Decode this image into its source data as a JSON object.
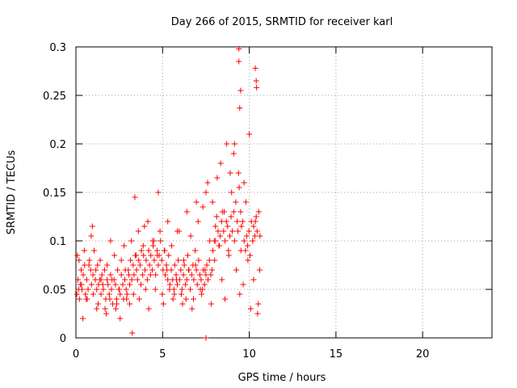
{
  "chart_data": {
    "type": "scatter",
    "title": "Day 266 of 2015, SRMTID for receiver karl",
    "xlabel": "GPS time / hours",
    "ylabel": "SRMTID / TECUs",
    "xlim": [
      0,
      24
    ],
    "ylim": [
      0,
      0.3
    ],
    "xticks": [
      0,
      5,
      10,
      15,
      20
    ],
    "xtick_labels": [
      "0",
      "5",
      "10",
      "15",
      "20"
    ],
    "yticks": [
      0,
      0.05,
      0.1,
      0.15,
      0.2,
      0.25,
      0.3
    ],
    "ytick_labels": [
      "0",
      "0.05",
      "0.1",
      "0.15",
      "0.2",
      "0.25",
      "0.3"
    ],
    "grid": true,
    "marker": "+",
    "color": "#ff0000",
    "series": [
      {
        "name": "karl",
        "x": [
          0.05,
          0.12,
          0.18,
          0.25,
          0.3,
          0.35,
          0.42,
          0.5,
          0.55,
          0.62,
          0.7,
          0.78,
          0.85,
          0.9,
          0.98,
          1.05,
          1.12,
          1.2,
          1.25,
          1.3,
          1.38,
          1.45,
          1.5,
          1.58,
          1.65,
          1.72,
          1.8,
          1.85,
          1.92,
          2.0,
          2.05,
          2.12,
          2.2,
          2.28,
          2.35,
          2.4,
          2.48,
          2.55,
          2.62,
          2.7,
          2.75,
          2.82,
          2.9,
          2.95,
          3.02,
          3.1,
          3.15,
          3.22,
          3.3,
          3.35,
          3.42,
          3.5,
          3.55,
          3.62,
          3.7,
          3.78,
          3.85,
          3.9,
          3.98,
          4.05,
          4.12,
          4.2,
          4.25,
          4.32,
          4.4,
          4.45,
          4.52,
          4.6,
          4.68,
          4.75,
          4.8,
          4.88,
          4.95,
          5.02,
          5.1,
          5.15,
          5.22,
          5.3,
          5.35,
          5.42,
          5.5,
          5.58,
          5.65,
          5.7,
          5.78,
          5.85,
          5.9,
          5.98,
          6.05,
          6.12,
          6.2,
          6.25,
          6.32,
          6.4,
          6.45,
          6.52,
          6.6,
          6.68,
          6.75,
          6.8,
          6.88,
          6.95,
          7.0,
          7.08,
          7.15,
          7.22,
          7.3,
          7.35,
          7.42,
          7.5,
          7.55,
          7.62,
          7.7,
          7.78,
          7.85,
          7.9,
          7.98,
          8.05,
          8.12,
          8.2,
          8.25,
          8.32,
          8.4,
          8.45,
          8.52,
          8.6,
          8.68,
          8.75,
          8.8,
          8.88,
          8.95,
          9.02,
          9.1,
          9.15,
          9.22,
          9.3,
          9.35,
          9.42,
          9.5,
          9.55,
          9.62,
          9.7,
          9.78,
          9.85,
          9.9,
          9.98,
          10.05,
          10.12,
          10.2,
          10.25,
          10.32,
          10.4,
          10.45,
          10.52,
          10.6,
          0.08,
          0.2,
          0.32,
          0.48,
          0.6,
          0.75,
          0.88,
          1.0,
          1.15,
          1.28,
          1.4,
          1.55,
          1.68,
          1.8,
          1.95,
          2.08,
          2.22,
          2.35,
          2.5,
          2.62,
          2.78,
          2.92,
          3.05,
          3.2,
          3.32,
          3.48,
          3.6,
          3.75,
          3.88,
          4.02,
          4.15,
          4.3,
          4.42,
          4.58,
          4.7,
          4.85,
          4.98,
          5.12,
          5.25,
          5.4,
          5.52,
          5.68,
          5.8,
          5.95,
          6.08,
          6.22,
          6.35,
          6.5,
          6.62,
          6.78,
          6.9,
          7.05,
          7.18,
          7.32,
          7.45,
          7.6,
          7.72,
          7.88,
          8.0,
          8.15,
          8.28,
          8.42,
          8.55,
          8.7,
          8.82,
          8.98,
          9.1,
          9.25,
          9.38,
          9.52,
          9.65,
          9.8,
          9.92,
          10.08,
          10.2,
          10.35,
          10.48,
          10.62,
          0.15,
          0.4,
          0.65,
          0.95,
          1.2,
          1.45,
          1.75,
          2.0,
          2.3,
          2.55,
          2.85,
          3.1,
          3.4,
          3.65,
          3.95,
          4.2,
          4.5,
          4.75,
          5.05,
          5.3,
          5.6,
          5.85,
          6.15,
          6.4,
          6.7,
          6.95,
          7.25,
          7.5,
          7.8,
          8.05,
          8.35,
          8.6,
          8.9,
          9.15,
          9.45,
          9.7,
          10.0,
          10.25,
          10.55,
          9.4,
          9.4,
          9.5,
          9.45,
          10.4,
          10.35,
          10.42,
          3.25,
          7.5
        ],
        "y": [
          0.045,
          0.06,
          0.08,
          0.055,
          0.07,
          0.05,
          0.065,
          0.075,
          0.045,
          0.06,
          0.05,
          0.08,
          0.07,
          0.055,
          0.065,
          0.09,
          0.06,
          0.05,
          0.075,
          0.055,
          0.06,
          0.045,
          0.065,
          0.05,
          0.07,
          0.04,
          0.06,
          0.055,
          0.045,
          0.065,
          0.05,
          0.035,
          0.06,
          0.055,
          0.04,
          0.07,
          0.05,
          0.045,
          0.065,
          0.055,
          0.04,
          0.06,
          0.05,
          0.045,
          0.07,
          0.055,
          0.08,
          0.06,
          0.075,
          0.065,
          0.085,
          0.07,
          0.06,
          0.08,
          0.075,
          0.09,
          0.065,
          0.085,
          0.07,
          0.08,
          0.06,
          0.09,
          0.075,
          0.085,
          0.07,
          0.095,
          0.08,
          0.065,
          0.09,
          0.075,
          0.085,
          0.1,
          0.08,
          0.07,
          0.09,
          0.065,
          0.075,
          0.06,
          0.085,
          0.055,
          0.07,
          0.06,
          0.05,
          0.075,
          0.065,
          0.055,
          0.08,
          0.06,
          0.07,
          0.05,
          0.065,
          0.075,
          0.055,
          0.06,
          0.085,
          0.07,
          0.05,
          0.065,
          0.075,
          0.06,
          0.09,
          0.07,
          0.055,
          0.08,
          0.065,
          0.06,
          0.05,
          0.07,
          0.055,
          0.065,
          0.075,
          0.06,
          0.08,
          0.065,
          0.07,
          0.09,
          0.1,
          0.115,
          0.125,
          0.11,
          0.095,
          0.105,
          0.12,
          0.13,
          0.11,
          0.1,
          0.12,
          0.115,
          0.09,
          0.105,
          0.125,
          0.11,
          0.13,
          0.1,
          0.14,
          0.12,
          0.11,
          0.155,
          0.13,
          0.115,
          0.12,
          0.1,
          0.09,
          0.105,
          0.095,
          0.11,
          0.085,
          0.12,
          0.1,
          0.115,
          0.105,
          0.125,
          0.11,
          0.035,
          0.07,
          0.085,
          0.04,
          0.055,
          0.09,
          0.04,
          0.075,
          0.105,
          0.045,
          0.07,
          0.035,
          0.08,
          0.055,
          0.03,
          0.075,
          0.04,
          0.06,
          0.085,
          0.035,
          0.05,
          0.08,
          0.095,
          0.04,
          0.065,
          0.1,
          0.045,
          0.085,
          0.11,
          0.055,
          0.095,
          0.05,
          0.12,
          0.065,
          0.1,
          0.05,
          0.085,
          0.11,
          0.045,
          0.09,
          0.07,
          0.05,
          0.095,
          0.045,
          0.06,
          0.11,
          0.045,
          0.08,
          0.04,
          0.07,
          0.105,
          0.04,
          0.075,
          0.12,
          0.05,
          0.135,
          0.07,
          0.16,
          0.1,
          0.14,
          0.08,
          0.165,
          0.095,
          0.06,
          0.13,
          0.2,
          0.085,
          0.15,
          0.19,
          0.07,
          0.17,
          0.09,
          0.055,
          0.14,
          0.08,
          0.03,
          0.1,
          0.12,
          0.025,
          0.105,
          0.05,
          0.02,
          0.04,
          0.115,
          0.03,
          0.06,
          0.025,
          0.1,
          0.03,
          0.02,
          0.07,
          0.035,
          0.145,
          0.04,
          0.115,
          0.03,
          0.1,
          0.15,
          0.035,
          0.12,
          0.04,
          0.11,
          0.035,
          0.13,
          0.03,
          0.14,
          0.045,
          0.15,
          0.035,
          0.1,
          0.18,
          0.04,
          0.17,
          0.2,
          0.045,
          0.16,
          0.21,
          0.06,
          0.13,
          0.285,
          0.298,
          0.255,
          0.237,
          0.265,
          0.278,
          0.258,
          0.005,
          0.0
        ]
      }
    ]
  }
}
